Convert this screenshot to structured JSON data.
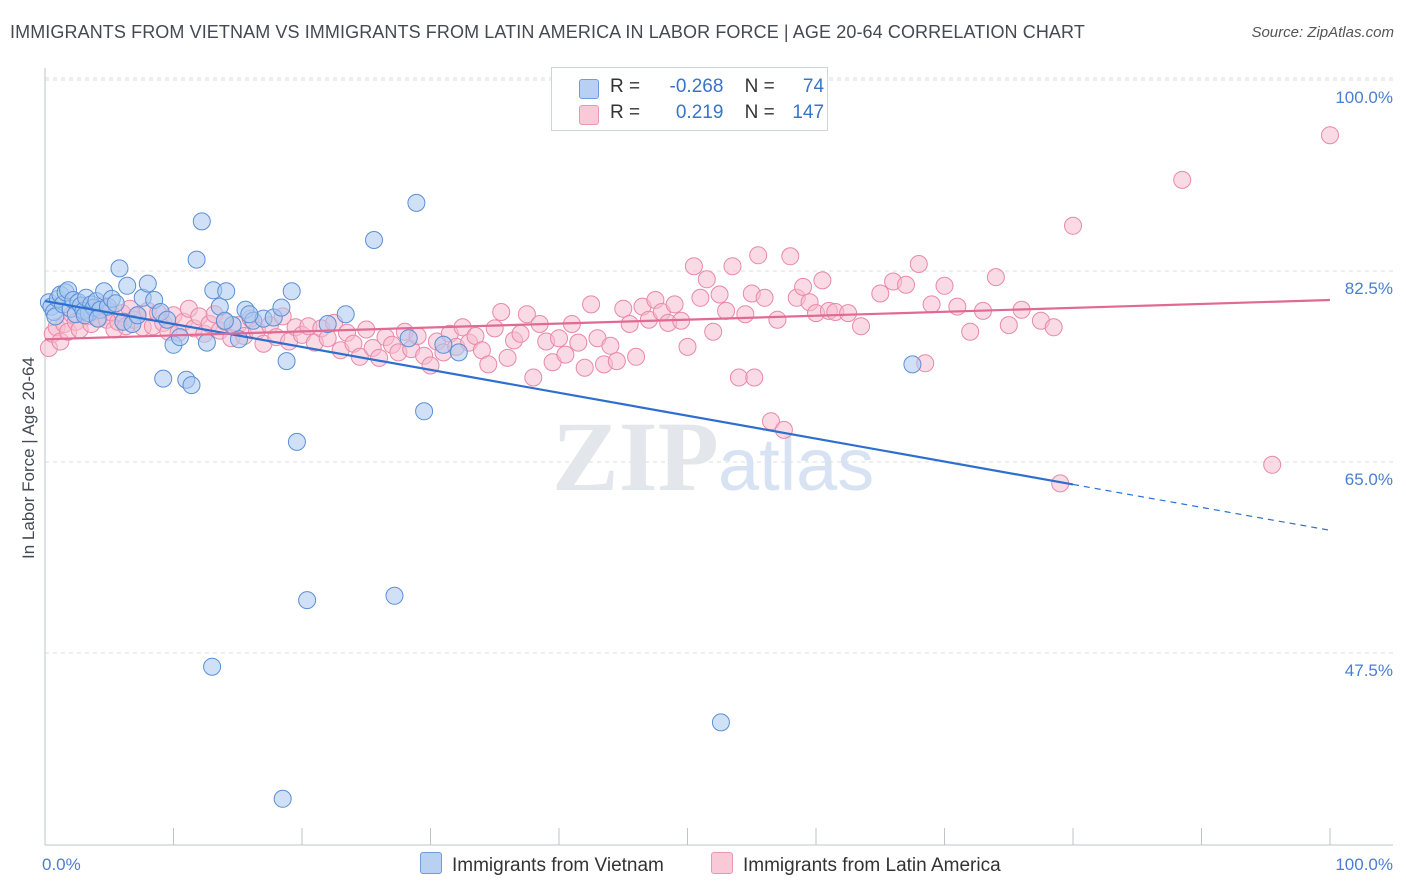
{
  "title": "IMMIGRANTS FROM VIETNAM VS IMMIGRANTS FROM LATIN AMERICA IN LABOR FORCE | AGE 20-64 CORRELATION CHART",
  "source": "Source: ZipAtlas.com",
  "watermark": {
    "zip": "ZIP",
    "atlas": "atlas"
  },
  "colors": {
    "blue_fill": "#a9c8f0",
    "blue_stroke": "#5b8fd6",
    "blue_line": "#2d6fcf",
    "pink_fill": "#f6bccd",
    "pink_stroke": "#e989a8",
    "pink_line": "#e06a93",
    "tick_text": "#4a7fd0",
    "grid": "#d9dde2"
  },
  "legend": {
    "rows": [
      {
        "r_label": "R =",
        "r_value": "-0.268",
        "n_label": "N =",
        "n_value": "74"
      },
      {
        "r_label": "R =",
        "r_value": "0.219",
        "n_label": "N =",
        "n_value": "147"
      }
    ]
  },
  "chart_data": {
    "type": "scatter",
    "title": "IMMIGRANTS FROM VIETNAM VS IMMIGRANTS FROM LATIN AMERICA IN LABOR FORCE | AGE 20-64 CORRELATION CHART",
    "xlabel": "",
    "ylabel": "In Labor Force | Age 20-64",
    "xlim": [
      0,
      100
    ],
    "ylim": [
      34,
      102
    ],
    "x_tick_labels": [
      "0.0%",
      "100.0%"
    ],
    "y_ticks": [
      47.5,
      65.0,
      82.5,
      100.0
    ],
    "y_tick_labels": [
      "47.5%",
      "65.0%",
      "82.5%",
      "100.0%"
    ],
    "grid": true,
    "legend_position": "top-center",
    "series": [
      {
        "name": "Immigrants from Vietnam",
        "color": "blue",
        "trend": {
          "x0": 0,
          "y0": 81.3,
          "x1": 80,
          "y1": 64.5,
          "dash_x1": 100,
          "dash_y1": 60.3
        },
        "points": [
          [
            0.3,
            81.2
          ],
          [
            0.5,
            80.8
          ],
          [
            0.7,
            80.3
          ],
          [
            0.8,
            79.9
          ],
          [
            1.0,
            81.5
          ],
          [
            1.2,
            81.9
          ],
          [
            1.4,
            81.0
          ],
          [
            1.6,
            82.1
          ],
          [
            1.8,
            82.3
          ],
          [
            2.0,
            80.6
          ],
          [
            2.2,
            81.4
          ],
          [
            2.4,
            80.1
          ],
          [
            2.6,
            81.2
          ],
          [
            2.8,
            80.9
          ],
          [
            3.0,
            80.4
          ],
          [
            3.2,
            81.6
          ],
          [
            3.4,
            80.2
          ],
          [
            3.6,
            81.0
          ],
          [
            3.8,
            80.7
          ],
          [
            4.0,
            81.3
          ],
          [
            4.3,
            80.5
          ],
          [
            4.6,
            82.2
          ],
          [
            4.9,
            80.8
          ],
          [
            5.2,
            81.5
          ],
          [
            5.5,
            81.1
          ],
          [
            5.8,
            84.3
          ],
          [
            6.1,
            79.4
          ],
          [
            6.4,
            82.7
          ],
          [
            6.8,
            79.2
          ],
          [
            7.2,
            80.0
          ],
          [
            7.6,
            81.6
          ],
          [
            8.0,
            82.9
          ],
          [
            8.5,
            81.4
          ],
          [
            9.0,
            80.3
          ],
          [
            9.5,
            79.6
          ],
          [
            10.0,
            77.3
          ],
          [
            11.0,
            74.1
          ],
          [
            11.4,
            73.6
          ],
          [
            11.8,
            85.1
          ],
          [
            12.2,
            88.6
          ],
          [
            12.6,
            77.5
          ],
          [
            13.1,
            82.3
          ],
          [
            13.6,
            80.8
          ],
          [
            14.1,
            82.2
          ],
          [
            14.6,
            79.1
          ],
          [
            15.1,
            77.8
          ],
          [
            15.6,
            80.5
          ],
          [
            16.2,
            79.5
          ],
          [
            17.0,
            79.7
          ],
          [
            17.8,
            79.8
          ],
          [
            18.4,
            80.7
          ],
          [
            18.8,
            75.8
          ],
          [
            19.2,
            82.2
          ],
          [
            19.6,
            68.4
          ],
          [
            20.4,
            53.9
          ],
          [
            22.0,
            79.2
          ],
          [
            23.4,
            80.1
          ],
          [
            25.6,
            86.9
          ],
          [
            27.2,
            54.3
          ],
          [
            28.3,
            77.9
          ],
          [
            28.9,
            90.3
          ],
          [
            29.5,
            71.2
          ],
          [
            31.0,
            77.3
          ],
          [
            32.2,
            76.6
          ],
          [
            9.2,
            74.2
          ],
          [
            10.5,
            78.0
          ],
          [
            13.0,
            47.8
          ],
          [
            14.0,
            79.5
          ],
          [
            15.9,
            80.1
          ],
          [
            18.5,
            35.7
          ],
          [
            67.5,
            75.5
          ],
          [
            52.6,
            42.7
          ],
          [
            3.1,
            80.0
          ],
          [
            4.1,
            79.7
          ]
        ]
      },
      {
        "name": "Immigrants from Latin America",
        "color": "pink",
        "trend": {
          "x0": 0,
          "y0": 77.8,
          "x1": 100,
          "y1": 81.4
        },
        "points": [
          [
            0.3,
            77.0
          ],
          [
            0.6,
            78.3
          ],
          [
            0.9,
            78.9
          ],
          [
            1.2,
            77.6
          ],
          [
            1.5,
            79.2
          ],
          [
            1.8,
            78.5
          ],
          [
            2.1,
            80.1
          ],
          [
            2.4,
            79.4
          ],
          [
            2.7,
            78.7
          ],
          [
            3.0,
            80.6
          ],
          [
            3.3,
            79.9
          ],
          [
            3.6,
            79.2
          ],
          [
            3.9,
            80.4
          ],
          [
            4.2,
            79.7
          ],
          [
            4.5,
            80.9
          ],
          [
            4.8,
            79.6
          ],
          [
            5.1,
            80.3
          ],
          [
            5.4,
            78.7
          ],
          [
            5.7,
            79.4
          ],
          [
            6.0,
            80.2
          ],
          [
            6.3,
            79.0
          ],
          [
            6.6,
            80.6
          ],
          [
            6.9,
            79.6
          ],
          [
            7.2,
            80.0
          ],
          [
            7.6,
            78.9
          ],
          [
            8.0,
            80.4
          ],
          [
            8.4,
            79.0
          ],
          [
            8.8,
            80.2
          ],
          [
            9.2,
            79.3
          ],
          [
            9.6,
            78.5
          ],
          [
            10.0,
            80.0
          ],
          [
            10.4,
            78.4
          ],
          [
            10.8,
            79.4
          ],
          [
            11.2,
            80.6
          ],
          [
            11.6,
            78.8
          ],
          [
            12.0,
            79.9
          ],
          [
            12.4,
            78.3
          ],
          [
            12.8,
            79.2
          ],
          [
            13.2,
            80.1
          ],
          [
            13.6,
            78.6
          ],
          [
            14.0,
            79.4
          ],
          [
            14.5,
            77.9
          ],
          [
            15.0,
            79.1
          ],
          [
            15.5,
            78.1
          ],
          [
            16.0,
            79.7
          ],
          [
            16.5,
            78.6
          ],
          [
            17.0,
            77.4
          ],
          [
            17.5,
            79.1
          ],
          [
            18.0,
            78.0
          ],
          [
            18.5,
            79.9
          ],
          [
            19.0,
            77.6
          ],
          [
            19.5,
            78.9
          ],
          [
            20.0,
            78.2
          ],
          [
            20.5,
            79.0
          ],
          [
            21.0,
            77.5
          ],
          [
            21.5,
            78.8
          ],
          [
            22.0,
            77.9
          ],
          [
            22.5,
            79.3
          ],
          [
            23.0,
            76.8
          ],
          [
            23.5,
            78.4
          ],
          [
            24.0,
            77.4
          ],
          [
            24.5,
            76.2
          ],
          [
            25.0,
            78.7
          ],
          [
            25.5,
            77.0
          ],
          [
            26.0,
            76.1
          ],
          [
            26.5,
            78.0
          ],
          [
            27.0,
            77.3
          ],
          [
            27.5,
            76.6
          ],
          [
            28.0,
            78.5
          ],
          [
            28.5,
            76.9
          ],
          [
            29.0,
            78.1
          ],
          [
            29.5,
            76.3
          ],
          [
            30.0,
            75.4
          ],
          [
            30.5,
            77.6
          ],
          [
            31.0,
            76.6
          ],
          [
            31.5,
            78.3
          ],
          [
            32.0,
            77.1
          ],
          [
            32.5,
            78.9
          ],
          [
            33.0,
            77.5
          ],
          [
            33.5,
            78.1
          ],
          [
            34.0,
            76.8
          ],
          [
            34.5,
            75.5
          ],
          [
            35.0,
            78.8
          ],
          [
            35.5,
            80.3
          ],
          [
            36.0,
            76.1
          ],
          [
            36.5,
            77.7
          ],
          [
            37.0,
            78.3
          ],
          [
            37.5,
            80.1
          ],
          [
            38.0,
            74.3
          ],
          [
            38.5,
            79.2
          ],
          [
            39.0,
            77.6
          ],
          [
            39.5,
            75.7
          ],
          [
            40.0,
            77.9
          ],
          [
            40.5,
            76.4
          ],
          [
            41.0,
            79.2
          ],
          [
            41.5,
            77.5
          ],
          [
            42.0,
            75.2
          ],
          [
            42.5,
            81.0
          ],
          [
            43.0,
            77.9
          ],
          [
            43.5,
            75.5
          ],
          [
            44.0,
            77.2
          ],
          [
            44.5,
            75.8
          ],
          [
            45.0,
            80.6
          ],
          [
            45.5,
            79.2
          ],
          [
            46.0,
            76.2
          ],
          [
            46.5,
            80.8
          ],
          [
            47.0,
            79.6
          ],
          [
            47.5,
            81.4
          ],
          [
            48.0,
            80.3
          ],
          [
            48.5,
            79.3
          ],
          [
            49.0,
            81.0
          ],
          [
            49.5,
            79.5
          ],
          [
            50.0,
            77.1
          ],
          [
            50.5,
            84.5
          ],
          [
            51.0,
            81.6
          ],
          [
            51.5,
            83.3
          ],
          [
            52.0,
            78.5
          ],
          [
            52.5,
            81.9
          ],
          [
            53.0,
            80.4
          ],
          [
            53.5,
            84.5
          ],
          [
            54.0,
            74.3
          ],
          [
            54.5,
            80.1
          ],
          [
            55.0,
            82.0
          ],
          [
            55.5,
            85.5
          ],
          [
            56.0,
            81.6
          ],
          [
            56.5,
            70.3
          ],
          [
            57.0,
            79.6
          ],
          [
            57.5,
            69.5
          ],
          [
            58.0,
            85.4
          ],
          [
            58.5,
            81.6
          ],
          [
            59.0,
            82.6
          ],
          [
            59.5,
            81.2
          ],
          [
            60.0,
            80.2
          ],
          [
            60.5,
            83.2
          ],
          [
            61.0,
            80.4
          ],
          [
            61.5,
            80.3
          ],
          [
            62.5,
            80.2
          ],
          [
            63.5,
            79.0
          ],
          [
            65.0,
            82.0
          ],
          [
            66.0,
            83.1
          ],
          [
            67.0,
            82.8
          ],
          [
            68.0,
            84.7
          ],
          [
            69.0,
            81.0
          ],
          [
            70.0,
            82.7
          ],
          [
            71.0,
            80.8
          ],
          [
            72.0,
            78.5
          ],
          [
            73.0,
            80.4
          ],
          [
            74.0,
            83.5
          ],
          [
            75.0,
            79.1
          ],
          [
            76.0,
            80.5
          ],
          [
            77.5,
            79.5
          ],
          [
            78.5,
            78.9
          ],
          [
            79.0,
            64.6
          ],
          [
            80.0,
            88.2
          ],
          [
            88.5,
            92.4
          ],
          [
            95.5,
            66.3
          ],
          [
            100.0,
            96.5
          ],
          [
            68.5,
            75.6
          ],
          [
            55.2,
            74.3
          ]
        ]
      }
    ]
  },
  "axis": {
    "ylabel": "In Labor Force | Age 20-64",
    "x_left_label": "0.0%",
    "x_right_label": "100.0%",
    "y_labels": [
      "47.5%",
      "65.0%",
      "82.5%",
      "100.0%"
    ]
  },
  "bottom_legend": {
    "series1": "Immigrants from Vietnam",
    "series2": "Immigrants from Latin America"
  }
}
